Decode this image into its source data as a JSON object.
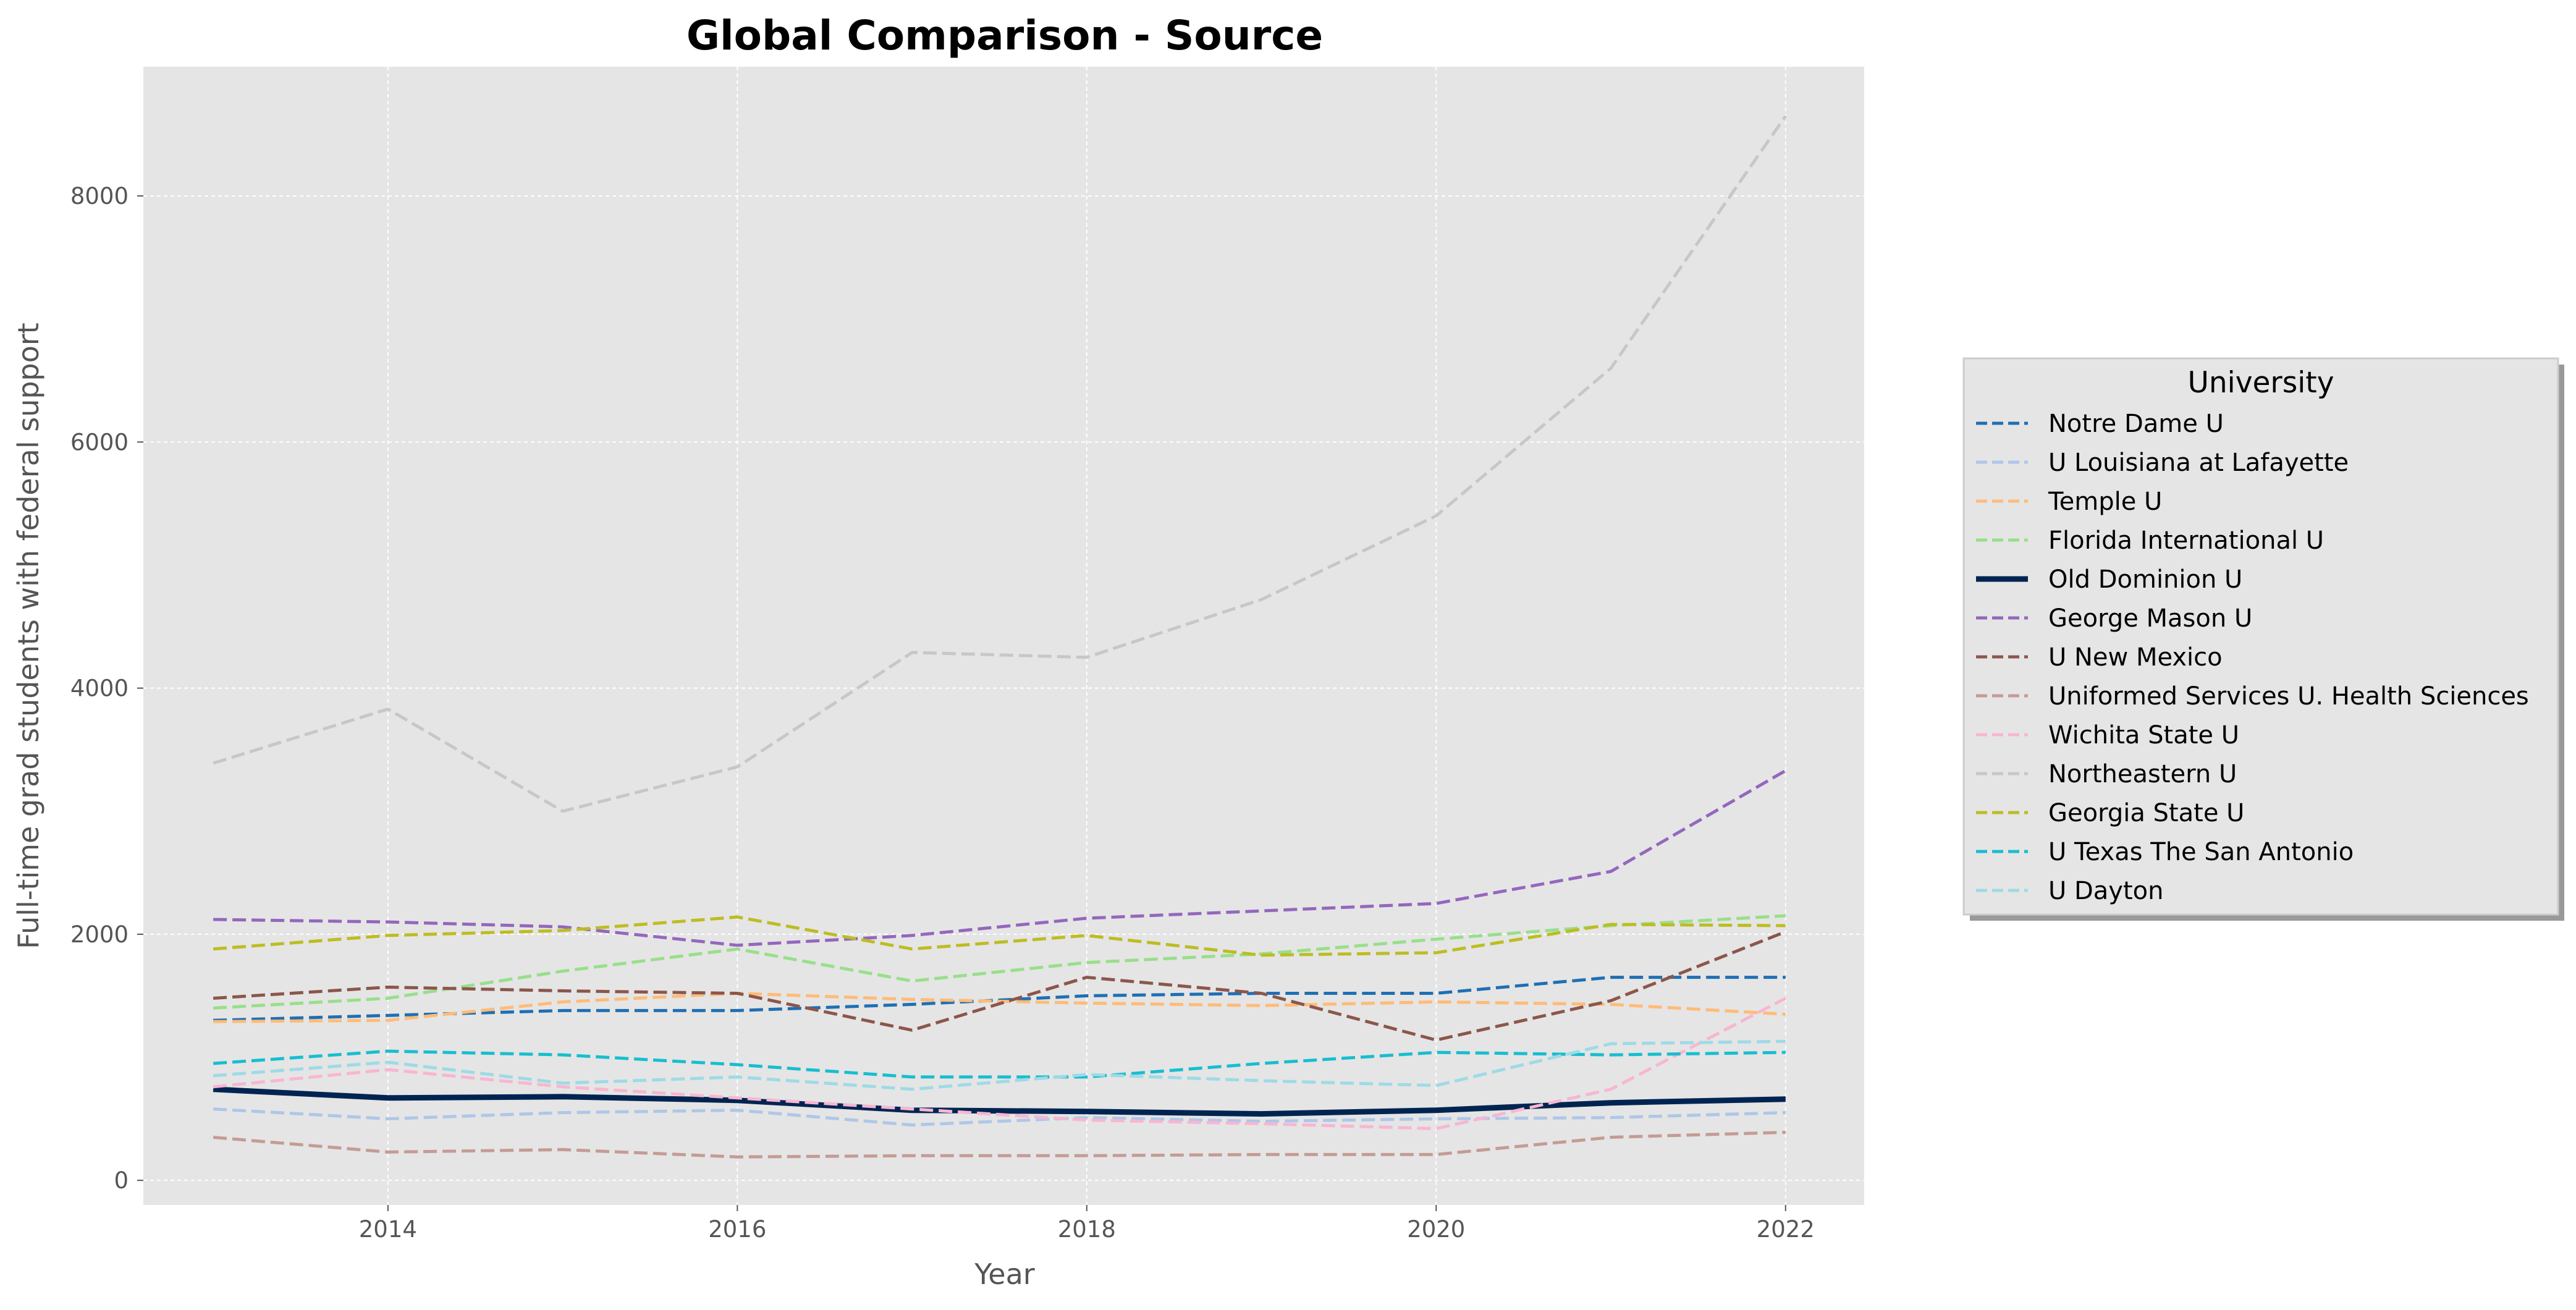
{
  "chart_data": {
    "type": "line",
    "title": "Global Comparison - Source",
    "xlabel": "Year",
    "ylabel": "Full-time grad students with federal support",
    "xlim": [
      2012.6,
      2022.45
    ],
    "ylim": [
      -200,
      9050
    ],
    "xticks": [
      2014,
      2016,
      2018,
      2020,
      2022
    ],
    "yticks": [
      0,
      2000,
      4000,
      6000,
      8000
    ],
    "grid": true,
    "legend_title": "University",
    "legend_position": "center-right",
    "x": [
      2013,
      2014,
      2015,
      2016,
      2017,
      2018,
      2019,
      2020,
      2021,
      2022
    ],
    "series": [
      {
        "name": "Notre Dame U",
        "color": "#1f6fb4",
        "style": "dashed",
        "values": [
          1300,
          1340,
          1380,
          1380,
          1430,
          1500,
          1520,
          1520,
          1650,
          1650
        ]
      },
      {
        "name": "U Louisiana at Lafayette",
        "color": "#aec7e8",
        "style": "dashed",
        "values": [
          580,
          500,
          550,
          570,
          450,
          510,
          480,
          500,
          510,
          550
        ]
      },
      {
        "name": "Temple U",
        "color": "#ffbb78",
        "style": "dashed",
        "values": [
          1290,
          1300,
          1450,
          1520,
          1470,
          1440,
          1420,
          1450,
          1430,
          1350
        ]
      },
      {
        "name": "Florida International U",
        "color": "#98df8a",
        "style": "dashed",
        "values": [
          1400,
          1480,
          1700,
          1880,
          1620,
          1770,
          1840,
          1960,
          2070,
          2150
        ]
      },
      {
        "name": "Old Dominion U",
        "color": "#002451",
        "style": "solid",
        "values": [
          740,
          670,
          680,
          650,
          570,
          560,
          540,
          570,
          630,
          660
        ]
      },
      {
        "name": "George Mason U",
        "color": "#9467bd",
        "style": "dashed",
        "values": [
          2120,
          2100,
          2060,
          1910,
          1990,
          2130,
          2190,
          2250,
          2510,
          3330
        ]
      },
      {
        "name": "U New Mexico",
        "color": "#8c564b",
        "style": "dashed",
        "values": [
          1480,
          1570,
          1540,
          1520,
          1220,
          1650,
          1520,
          1140,
          1460,
          2020
        ]
      },
      {
        "name": "Uniformed Services U. Health Sciences",
        "color": "#c49c94",
        "style": "dashed",
        "values": [
          350,
          230,
          250,
          190,
          200,
          200,
          210,
          210,
          350,
          390
        ]
      },
      {
        "name": "Wichita State U",
        "color": "#f7b6d2",
        "style": "dashed",
        "values": [
          760,
          900,
          760,
          670,
          580,
          490,
          460,
          420,
          740,
          1480
        ]
      },
      {
        "name": "Northeastern U",
        "color": "#c7c7c7",
        "style": "dashed",
        "values": [
          3390,
          3830,
          3000,
          3360,
          4290,
          4250,
          4720,
          5400,
          6600,
          8650
        ]
      },
      {
        "name": "Georgia State U",
        "color": "#bcbd22",
        "style": "dashed",
        "values": [
          1880,
          1990,
          2030,
          2140,
          1880,
          1990,
          1830,
          1850,
          2080,
          2070
        ]
      },
      {
        "name": "U Texas The San Antonio",
        "color": "#17becf",
        "style": "dashed",
        "values": [
          950,
          1050,
          1020,
          940,
          840,
          840,
          950,
          1040,
          1020,
          1040
        ]
      },
      {
        "name": "U Dayton",
        "color": "#9edae5",
        "style": "dashed",
        "values": [
          850,
          960,
          790,
          840,
          740,
          860,
          810,
          770,
          1110,
          1130
        ]
      }
    ]
  }
}
